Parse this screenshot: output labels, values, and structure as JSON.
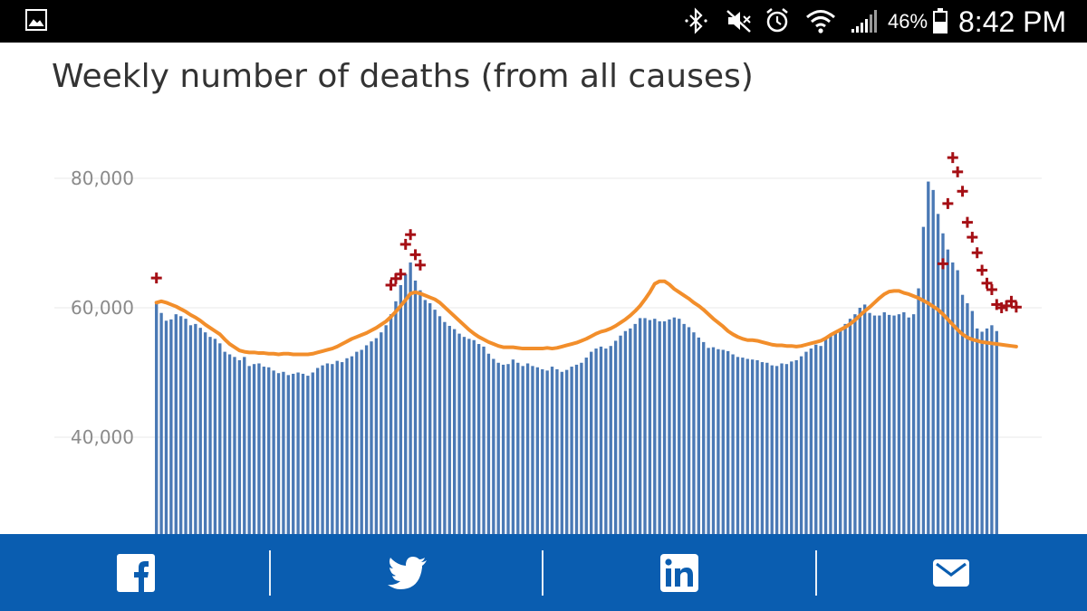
{
  "status_bar": {
    "battery_percent": "46%",
    "time": "8:42 PM",
    "icons": [
      "gallery-icon",
      "bluetooth-icon",
      "mute-icon",
      "alarm-icon",
      "wifi-icon",
      "signal-icon",
      "battery-icon"
    ]
  },
  "article": {
    "title": "Weekly number of deaths (from all causes)"
  },
  "chart_data": {
    "type": "bar",
    "title": "Weekly number of deaths (from all causes)",
    "ylim": [
      25000,
      83000
    ],
    "yticks": [
      40000,
      60000,
      80000
    ],
    "ytick_labels": [
      "40,000",
      "60,000",
      "80,000"
    ],
    "grid": true,
    "bar_color": "#4a79b5",
    "line_color": "#f28e2b",
    "marker_color": "#a50f15",
    "series": [
      {
        "values": [
          61000,
          59200,
          58000,
          58200,
          59000,
          58700,
          58300,
          57300,
          57500,
          56900,
          56200,
          55500,
          55200,
          54500,
          53200,
          52800,
          52400,
          51900,
          52400,
          51000,
          51300,
          51400,
          50900,
          50800,
          50300,
          49900,
          50100,
          49600,
          49800,
          50000,
          49800,
          49500,
          50000,
          50700,
          51100,
          51400,
          51300,
          51800,
          51600,
          52200,
          52500,
          53200,
          53500,
          54200,
          54800,
          55300,
          56200,
          57300,
          59000,
          61000,
          63500,
          65200,
          67000,
          64200,
          62700,
          61200,
          60700,
          59700,
          58700,
          57800,
          57200,
          56700,
          56000,
          55500,
          55200,
          55000,
          54400,
          54000,
          52900,
          52100,
          51500,
          51200,
          51300,
          52000,
          51500,
          51000,
          51400,
          51000,
          50800,
          50500,
          50300,
          50900,
          50500,
          50100,
          50400,
          50900,
          51200,
          51500,
          52300,
          53200,
          53700,
          54000,
          53700,
          54100,
          54900,
          55700,
          56400,
          56800,
          57500,
          58400,
          58400,
          58100,
          58300,
          57900,
          57900,
          58200,
          58500,
          58300,
          57500,
          57000,
          56200,
          55400,
          54700,
          53800,
          53900,
          53600,
          53500,
          53300,
          52800,
          52400,
          52300,
          52100,
          52000,
          51900,
          51600,
          51500,
          51100,
          51000,
          51400,
          51300,
          51700,
          51900,
          52500,
          53200,
          53700,
          54300,
          54100,
          55200,
          55700,
          56200,
          56700,
          57500,
          58300,
          59000,
          60000,
          60500,
          59200,
          58800,
          58800,
          59300,
          58900,
          58800,
          59000,
          59300,
          58500,
          59000,
          63000,
          72500,
          79500,
          78200,
          74500,
          71500,
          69000,
          67000,
          65800,
          62000,
          60700,
          59500,
          56800,
          56300,
          56800,
          57300,
          56400
        ]
      },
      {
        "values": [
          60800,
          61000,
          60800,
          60500,
          60200,
          59800,
          59400,
          58900,
          58500,
          58000,
          57400,
          56900,
          56400,
          55900,
          55100,
          54400,
          53900,
          53400,
          53200,
          53100,
          53100,
          53000,
          53000,
          52900,
          52900,
          52800,
          52900,
          52900,
          52800,
          52800,
          52800,
          52800,
          52900,
          53100,
          53300,
          53500,
          53700,
          54000,
          54400,
          54800,
          55200,
          55500,
          55800,
          56100,
          56500,
          56900,
          57400,
          57900,
          58600,
          59400,
          60300,
          61200,
          62200,
          62400,
          62200,
          61900,
          61600,
          61300,
          60800,
          60100,
          59400,
          58700,
          58000,
          57300,
          56600,
          56000,
          55500,
          55100,
          54700,
          54400,
          54100,
          53900,
          53900,
          53900,
          53800,
          53700,
          53700,
          53700,
          53700,
          53700,
          53800,
          53700,
          53800,
          54000,
          54200,
          54400,
          54600,
          54900,
          55200,
          55600,
          56000,
          56300,
          56500,
          56800,
          57200,
          57700,
          58200,
          58800,
          59500,
          60300,
          61300,
          62400,
          63700,
          64100,
          64100,
          63600,
          62900,
          62400,
          61900,
          61400,
          60800,
          60300,
          59700,
          59000,
          58300,
          57700,
          57100,
          56400,
          55900,
          55500,
          55200,
          55000,
          55000,
          54900,
          54700,
          54500,
          54300,
          54200,
          54200,
          54100,
          54100,
          54000,
          54100,
          54300,
          54500,
          54700,
          54900,
          55300,
          55800,
          56200,
          56600,
          57000,
          57500,
          58100,
          58800,
          59500,
          60100,
          60800,
          61500,
          62100,
          62500,
          62600,
          62600,
          62300,
          62100,
          61800,
          61500,
          61100,
          60700,
          60200,
          59700,
          59000,
          58200,
          57400,
          56600,
          55900,
          55400,
          55100,
          54900,
          54700,
          54600,
          54500,
          54400,
          54300,
          54200,
          54100,
          54000
        ]
      }
    ],
    "markers": [
      {
        "week": 0,
        "value": 64600
      },
      {
        "week": 48,
        "value": 63500
      },
      {
        "week": 49,
        "value": 64500
      },
      {
        "week": 50,
        "value": 65200
      },
      {
        "week": 51,
        "value": 69800
      },
      {
        "week": 52,
        "value": 71300
      },
      {
        "week": 53,
        "value": 68200
      },
      {
        "week": 54,
        "value": 66600
      },
      {
        "week": 161,
        "value": 66800
      },
      {
        "week": 162,
        "value": 76100
      },
      {
        "week": 163,
        "value": 83200
      },
      {
        "week": 164,
        "value": 81000
      },
      {
        "week": 165,
        "value": 78000
      },
      {
        "week": 166,
        "value": 73200
      },
      {
        "week": 167,
        "value": 70900
      },
      {
        "week": 168,
        "value": 68500
      },
      {
        "week": 169,
        "value": 65800
      },
      {
        "week": 170,
        "value": 63800
      },
      {
        "week": 171,
        "value": 62800
      },
      {
        "week": 172,
        "value": 60500
      },
      {
        "week": 173,
        "value": 60000
      },
      {
        "week": 174,
        "value": 60300
      },
      {
        "week": 175,
        "value": 61000
      },
      {
        "week": 176,
        "value": 60100
      }
    ]
  },
  "share_bar": {
    "buttons": [
      "facebook",
      "twitter",
      "linkedin",
      "email"
    ]
  }
}
